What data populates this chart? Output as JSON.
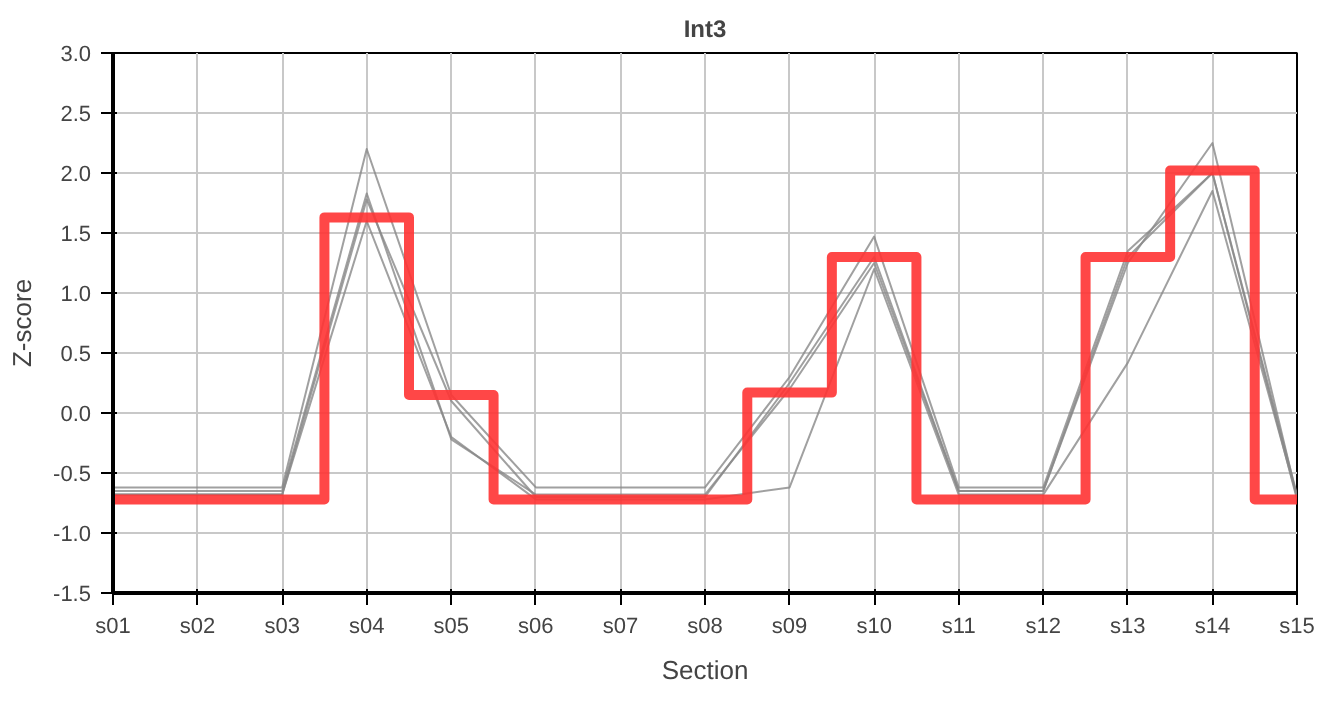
{
  "chart_data": {
    "type": "line",
    "title": "Int3",
    "xlabel": "Section",
    "ylabel": "Z-score",
    "categories": [
      "s01",
      "s02",
      "s03",
      "s04",
      "s05",
      "s06",
      "s07",
      "s08",
      "s09",
      "s10",
      "s11",
      "s12",
      "s13",
      "s14",
      "s15"
    ],
    "ylim": [
      -1.5,
      3.0
    ],
    "yticks": [
      {
        "value": -1.5,
        "label": "-1.5"
      },
      {
        "value": -1.0,
        "label": "-1.0"
      },
      {
        "value": -0.5,
        "label": "-0.5"
      },
      {
        "value": 0,
        "label": "0.0"
      },
      {
        "value": 0.5,
        "label": "0.5"
      },
      {
        "value": 1.0,
        "label": "1.0"
      },
      {
        "value": 1.5,
        "label": "1.5"
      },
      {
        "value": 2.0,
        "label": "2.0"
      },
      {
        "value": 2.5,
        "label": "2.5"
      },
      {
        "value": 3.0,
        "label": "3.0"
      }
    ],
    "grid": true,
    "marker": "none",
    "series": [
      {
        "color": "#888888",
        "values": [
          -0.62,
          -0.62,
          -0.62,
          2.2,
          0.15,
          -0.62,
          -0.62,
          -0.62,
          0.3,
          1.47,
          -0.62,
          -0.62,
          1.35,
          2.0,
          -0.68
        ]
      },
      {
        "color": "#888888",
        "values": [
          -0.65,
          -0.65,
          -0.65,
          1.83,
          -0.22,
          -0.68,
          -0.68,
          -0.68,
          0.2,
          1.25,
          -0.65,
          -0.65,
          1.25,
          2.25,
          -0.7
        ]
      },
      {
        "color": "#888888",
        "values": [
          -0.68,
          -0.68,
          -0.68,
          1.6,
          -0.2,
          -0.72,
          -0.72,
          -0.72,
          -0.62,
          1.2,
          -0.68,
          -0.68,
          0.42,
          1.85,
          -0.7
        ]
      },
      {
        "color": "#888888",
        "values": [
          -0.68,
          -0.68,
          -0.68,
          1.78,
          0.1,
          -0.7,
          -0.7,
          -0.7,
          0.25,
          1.3,
          -0.65,
          -0.65,
          1.3,
          2.0,
          -0.72
        ]
      },
      {
        "type": "step",
        "color": "#ff3333",
        "values": [
          -0.72,
          -0.72,
          -0.72,
          1.63,
          0.15,
          -0.72,
          -0.72,
          -0.72,
          0.17,
          1.3,
          -0.72,
          -0.72,
          1.3,
          2.02,
          -0.72
        ]
      }
    ]
  }
}
